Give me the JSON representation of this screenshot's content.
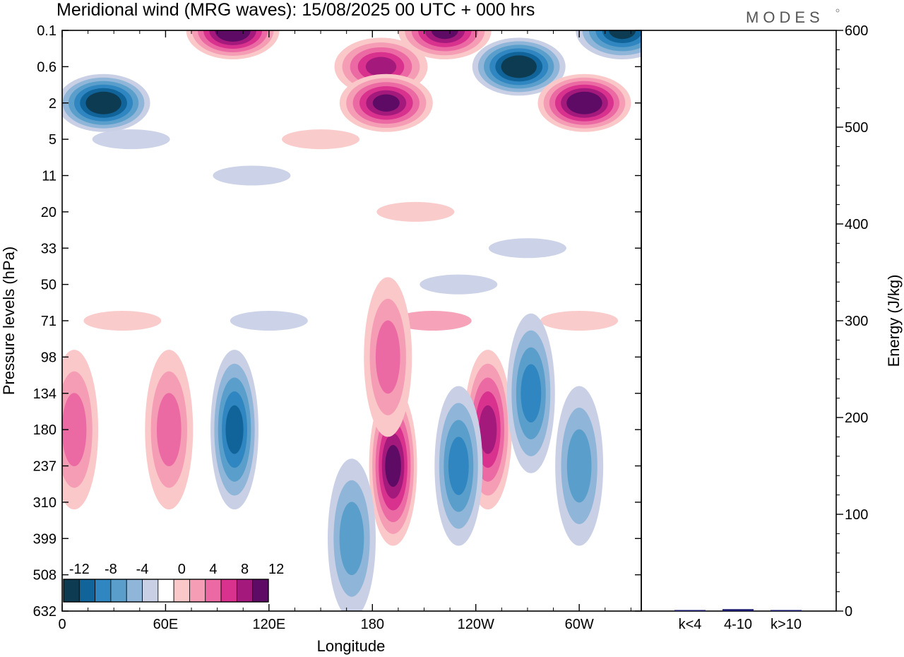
{
  "chart_data": [
    {
      "type": "heatmap",
      "title": "Meridional wind (MRG waves):  15/08/2025  00 UTC  + 000 hrs",
      "xlabel": "Longitude",
      "ylabel": "Pressure levels (hPa)",
      "x_ticks": [
        "0",
        "60E",
        "120E",
        "180",
        "120W",
        "60W"
      ],
      "x_tick_degrees": [
        0,
        60,
        120,
        180,
        240,
        300
      ],
      "x_range_degrees": [
        0,
        336
      ],
      "y_ticks": [
        "0.1",
        "0.6",
        "2",
        "5",
        "11",
        "20",
        "33",
        "50",
        "71",
        "98",
        "134",
        "180",
        "237",
        "310",
        "399",
        "508",
        "632"
      ],
      "colorbar": {
        "tick_labels": [
          "-12",
          "-8",
          "-4",
          "0",
          "4",
          "8",
          "12"
        ],
        "levels": [
          -14,
          -12,
          -10,
          -8,
          -6,
          -4,
          -2,
          2,
          4,
          6,
          8,
          10,
          12,
          14
        ],
        "colors": [
          "#0d3b52",
          "#10649a",
          "#2f86c0",
          "#5a9ecb",
          "#8fb6d8",
          "#c9d0e6",
          "#ffffff",
          "#fac8c8",
          "#f59db5",
          "#ec6aa3",
          "#d8318e",
          "#a31a7c",
          "#5e0b66"
        ]
      },
      "features": [
        {
          "lon": 24,
          "level": "2",
          "value": -14,
          "sign": "negative"
        },
        {
          "lon": 99,
          "level": "0.1",
          "value": 14,
          "sign": "positive"
        },
        {
          "lon": 185,
          "level": "0.6",
          "value": 11,
          "sign": "positive"
        },
        {
          "lon": 188,
          "level": "2",
          "value": 12,
          "sign": "positive"
        },
        {
          "lon": 222,
          "level": "0.1",
          "value": 12,
          "sign": "positive"
        },
        {
          "lon": 265,
          "level": "0.6",
          "value": -14,
          "sign": "negative"
        },
        {
          "lon": 303,
          "level": "2",
          "value": 14,
          "sign": "positive"
        },
        {
          "lon": 325,
          "level": "0.1",
          "value": -12,
          "sign": "negative"
        },
        {
          "lon": 7,
          "level": "180",
          "value": 7,
          "sign": "positive"
        },
        {
          "lon": 62,
          "level": "180",
          "value": 7,
          "sign": "positive"
        },
        {
          "lon": 100,
          "level": "180",
          "value": -11,
          "sign": "negative"
        },
        {
          "lon": 192,
          "level": "237",
          "value": 13,
          "sign": "positive"
        },
        {
          "lon": 189,
          "level": "98",
          "value": 7,
          "sign": "positive"
        },
        {
          "lon": 247,
          "level": "180",
          "value": 11,
          "sign": "positive"
        },
        {
          "lon": 230,
          "level": "237",
          "value": -9,
          "sign": "negative"
        },
        {
          "lon": 272,
          "level": "134",
          "value": -8,
          "sign": "negative"
        },
        {
          "lon": 300,
          "level": "237",
          "value": -6,
          "sign": "negative"
        },
        {
          "lon": 168,
          "level": "399",
          "value": -6,
          "sign": "negative"
        }
      ]
    },
    {
      "type": "bar",
      "ylabel": "Energy (J/kg)",
      "categories": [
        "k<4",
        "4-10",
        "k>10"
      ],
      "values": [
        0.5,
        2,
        0.3
      ],
      "ylim": [
        0,
        600
      ],
      "y_ticks": [
        0,
        100,
        200,
        300,
        400,
        500,
        600
      ]
    }
  ],
  "branding": {
    "logo": "MODES"
  }
}
